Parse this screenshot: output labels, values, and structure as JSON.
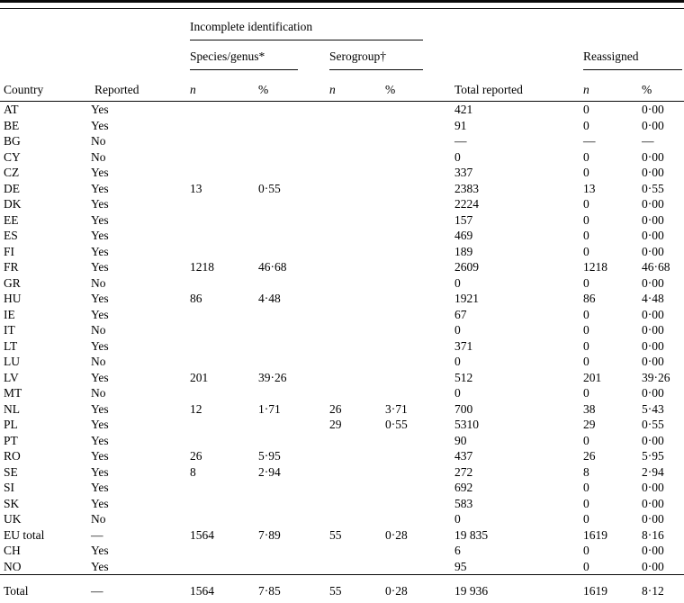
{
  "table": {
    "group_headers": {
      "incomplete_identification": "Incomplete identification",
      "species_genus": "Species/genus*",
      "serogroup": "Serogroup†",
      "reassigned": "Reassigned"
    },
    "columns": [
      {
        "key": "country",
        "label": "Country"
      },
      {
        "key": "reported",
        "label": "Reported"
      },
      {
        "key": "species_genus_n",
        "label": "n"
      },
      {
        "key": "species_genus_pct",
        "label": "%"
      },
      {
        "key": "serogroup_n",
        "label": "n"
      },
      {
        "key": "serogroup_pct",
        "label": "%"
      },
      {
        "key": "total_reported",
        "label": "Total reported"
      },
      {
        "key": "reassigned_n",
        "label": "n"
      },
      {
        "key": "reassigned_pct",
        "label": "%"
      }
    ],
    "rows": [
      [
        "AT",
        "Yes",
        "",
        "",
        "",
        "",
        "421",
        "0",
        "0·00"
      ],
      [
        "BE",
        "Yes",
        "",
        "",
        "",
        "",
        "91",
        "0",
        "0·00"
      ],
      [
        "BG",
        "No",
        "",
        "",
        "",
        "",
        "—",
        "—",
        "—"
      ],
      [
        "CY",
        "No",
        "",
        "",
        "",
        "",
        "0",
        "0",
        "0·00"
      ],
      [
        "CZ",
        "Yes",
        "",
        "",
        "",
        "",
        "337",
        "0",
        "0·00"
      ],
      [
        "DE",
        "Yes",
        "13",
        "0·55",
        "",
        "",
        "2383",
        "13",
        "0·55"
      ],
      [
        "DK",
        "Yes",
        "",
        "",
        "",
        "",
        "2224",
        "0",
        "0·00"
      ],
      [
        "EE",
        "Yes",
        "",
        "",
        "",
        "",
        "157",
        "0",
        "0·00"
      ],
      [
        "ES",
        "Yes",
        "",
        "",
        "",
        "",
        "469",
        "0",
        "0·00"
      ],
      [
        "FI",
        "Yes",
        "",
        "",
        "",
        "",
        "189",
        "0",
        "0·00"
      ],
      [
        "FR",
        "Yes",
        "1218",
        "46·68",
        "",
        "",
        "2609",
        "1218",
        "46·68"
      ],
      [
        "GR",
        "No",
        "",
        "",
        "",
        "",
        "0",
        "0",
        "0·00"
      ],
      [
        "HU",
        "Yes",
        "86",
        "4·48",
        "",
        "",
        "1921",
        "86",
        "4·48"
      ],
      [
        "IE",
        "Yes",
        "",
        "",
        "",
        "",
        "67",
        "0",
        "0·00"
      ],
      [
        "IT",
        "No",
        "",
        "",
        "",
        "",
        "0",
        "0",
        "0·00"
      ],
      [
        "LT",
        "Yes",
        "",
        "",
        "",
        "",
        "371",
        "0",
        "0·00"
      ],
      [
        "LU",
        "No",
        "",
        "",
        "",
        "",
        "0",
        "0",
        "0·00"
      ],
      [
        "LV",
        "Yes",
        "201",
        "39·26",
        "",
        "",
        "512",
        "201",
        "39·26"
      ],
      [
        "MT",
        "No",
        "",
        "",
        "",
        "",
        "0",
        "0",
        "0·00"
      ],
      [
        "NL",
        "Yes",
        "12",
        "1·71",
        "26",
        "3·71",
        "700",
        "38",
        "5·43"
      ],
      [
        "PL",
        "Yes",
        "",
        "",
        "29",
        "0·55",
        "5310",
        "29",
        "0·55"
      ],
      [
        "PT",
        "Yes",
        "",
        "",
        "",
        "",
        "90",
        "0",
        "0·00"
      ],
      [
        "RO",
        "Yes",
        "26",
        "5·95",
        "",
        "",
        "437",
        "26",
        "5·95"
      ],
      [
        "SE",
        "Yes",
        "8",
        "2·94",
        "",
        "",
        "272",
        "8",
        "2·94"
      ],
      [
        "SI",
        "Yes",
        "",
        "",
        "",
        "",
        "692",
        "0",
        "0·00"
      ],
      [
        "SK",
        "Yes",
        "",
        "",
        "",
        "",
        "583",
        "0",
        "0·00"
      ],
      [
        "UK",
        "No",
        "",
        "",
        "",
        "",
        "0",
        "0",
        "0·00"
      ],
      [
        "EU total",
        "—",
        "1564",
        "7·89",
        "55",
        "0·28",
        "19 835",
        "1619",
        "8·16"
      ],
      [
        "CH",
        "Yes",
        "",
        "",
        "",
        "",
        "6",
        "0",
        "0·00"
      ],
      [
        "NO",
        "Yes",
        "",
        "",
        "",
        "",
        "95",
        "0",
        "0·00"
      ]
    ],
    "total_row": [
      "Total",
      "—",
      "1564",
      "7·85",
      "55",
      "0·28",
      "19 936",
      "1619",
      "8·12"
    ]
  }
}
